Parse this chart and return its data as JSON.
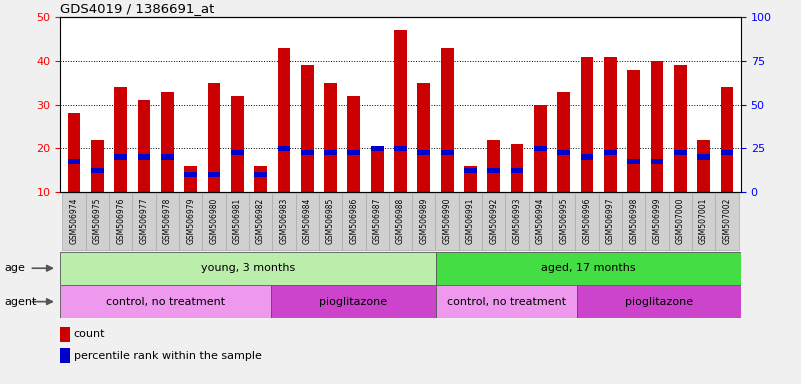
{
  "title": "GDS4019 / 1386691_at",
  "samples": [
    "GSM506974",
    "GSM506975",
    "GSM506976",
    "GSM506977",
    "GSM506978",
    "GSM506979",
    "GSM506980",
    "GSM506981",
    "GSM506982",
    "GSM506983",
    "GSM506984",
    "GSM506985",
    "GSM506986",
    "GSM506987",
    "GSM506988",
    "GSM506989",
    "GSM506990",
    "GSM506991",
    "GSM506992",
    "GSM506993",
    "GSM506994",
    "GSM506995",
    "GSM506996",
    "GSM506997",
    "GSM506998",
    "GSM506999",
    "GSM507000",
    "GSM507001",
    "GSM507002"
  ],
  "count_values": [
    28,
    22,
    34,
    31,
    33,
    16,
    35,
    32,
    16,
    43,
    39,
    35,
    32,
    20,
    47,
    35,
    43,
    16,
    22,
    21,
    30,
    33,
    41,
    41,
    38,
    40,
    39,
    22,
    34
  ],
  "percentile_values": [
    17,
    15,
    18,
    18,
    18,
    14,
    14,
    19,
    14,
    20,
    19,
    19,
    19,
    20,
    20,
    19,
    19,
    15,
    15,
    15,
    20,
    19,
    18,
    19,
    17,
    17,
    19,
    18,
    19
  ],
  "bar_color": "#cc0000",
  "percentile_color": "#0000cc",
  "ylim_left": [
    10,
    50
  ],
  "ylim_right": [
    0,
    100
  ],
  "yticks_left": [
    10,
    20,
    30,
    40,
    50
  ],
  "yticks_right": [
    0,
    25,
    50,
    75,
    100
  ],
  "fig_bg": "#f0f0f0",
  "plot_bg": "#ffffff",
  "xtick_bg": "#d0d0d0",
  "age_groups": [
    {
      "label": "young, 3 months",
      "start": 0,
      "end": 16,
      "color": "#bbeeaa"
    },
    {
      "label": "aged, 17 months",
      "start": 16,
      "end": 29,
      "color": "#44dd44"
    }
  ],
  "agent_groups": [
    {
      "label": "control, no treatment",
      "start": 0,
      "end": 9,
      "color": "#ee99ee"
    },
    {
      "label": "pioglitazone",
      "start": 9,
      "end": 16,
      "color": "#cc44cc"
    },
    {
      "label": "control, no treatment",
      "start": 16,
      "end": 22,
      "color": "#ee99ee"
    },
    {
      "label": "pioglitazone",
      "start": 22,
      "end": 29,
      "color": "#cc44cc"
    }
  ],
  "legend_items": [
    {
      "label": "count",
      "color": "#cc0000"
    },
    {
      "label": "percentile rank within the sample",
      "color": "#0000cc"
    }
  ],
  "bar_width": 0.55
}
